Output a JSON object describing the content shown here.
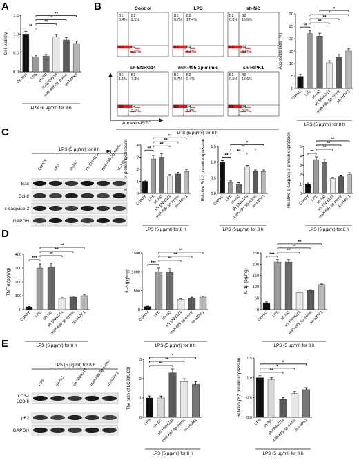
{
  "panels": {
    "A": "A",
    "B": "B",
    "C": "C",
    "D": "D",
    "E": "E"
  },
  "treatment_label": "LPS (5 μg/ml) for 8 h",
  "treatment_label_short": "LPS (5 μg/ml) for 8 h",
  "flow": {
    "axis_y": "PI",
    "axis_x": "Annexin-FITC",
    "plots": [
      {
        "name": "Control",
        "q": [
          "B1\n0.4%",
          "B2\n2.5%",
          "B3",
          "B4\n2.5%"
        ]
      },
      {
        "name": "LPS",
        "q": [
          "B1\n0.7%",
          "B2\n17.4%",
          "B3",
          "B4\n4.6%"
        ]
      },
      {
        "name": "sh-NC",
        "q": [
          "B1\n0.6%",
          "B2\n16.5%",
          "B3",
          "B4\n3.6%"
        ]
      },
      {
        "name": "sh-SNHG14",
        "q": [
          "B1\n1.1%",
          "B2\n7.3%",
          "B3",
          "B4\n2.5%"
        ]
      },
      {
        "name": "miR-495-3p mimic",
        "q": [
          "B1\n0.7%",
          "B2\n9.4%",
          "B3",
          "B4\n3.5%"
        ]
      },
      {
        "name": "sh-HIPK1",
        "q": [
          "B1\n0.5%",
          "B2\n12.6%",
          "B3",
          "B4\n2.9%"
        ]
      }
    ]
  },
  "blots_C": {
    "header": "LPS (5 μg/ml) for 8 h",
    "lanes": [
      "Control",
      "LPS",
      "sh-NC",
      "sh-SNHG14",
      "miR-495-3p mimic",
      "sh-HIPK1"
    ],
    "rows": [
      "Bax",
      "Bcl-2",
      "c-caspase 3",
      "GAPDH"
    ]
  },
  "blots_E": {
    "header": "LPS (5 μg/ml) for 8 h",
    "lanes": [
      "LPS",
      "sh-NC",
      "sh-SNHG14",
      "miR-495-3p mimic",
      "sh-HIPK1"
    ],
    "rows": [
      "LC3-I",
      "LC3-II",
      "p62",
      "GAPDH"
    ]
  },
  "chart_data": [
    {
      "id": "A",
      "type": "bar",
      "ylabel": "Cell viability",
      "ylim": [
        0,
        1.5
      ],
      "yticks": [
        0.0,
        0.5,
        1.0,
        1.5
      ],
      "categories": [
        "Control",
        "LPS",
        "sh-NC",
        "sh-SNHG14",
        "miR-495-3p mimic",
        "sh-HIPK1"
      ],
      "values": [
        1.0,
        0.4,
        0.42,
        0.92,
        0.84,
        0.75
      ],
      "errors": [
        0.07,
        0.04,
        0.04,
        0.07,
        0.07,
        0.06
      ],
      "sig": [
        "**",
        "**",
        "**",
        "**"
      ],
      "xlabel": "LPS (5 μg/ml) for 8 h"
    },
    {
      "id": "B",
      "type": "bar",
      "ylabel": "Apoptosis cells (%)",
      "ylim": [
        0,
        30
      ],
      "yticks": [
        0,
        5,
        10,
        15,
        20,
        25,
        30
      ],
      "categories": [
        "Control",
        "LPS",
        "sh-NC",
        "sh-SNHG14",
        "miR-495-3p mimic",
        "sh-HIPK1"
      ],
      "values": [
        4.8,
        22.0,
        21.0,
        10.3,
        12.7,
        15.0
      ],
      "errors": [
        0.8,
        1.3,
        1.2,
        0.8,
        0.9,
        0.9
      ],
      "sig": [
        "**",
        "**",
        "**",
        "*",
        "*"
      ],
      "xlabel": "LPS (5 μg/ml) for 8 h"
    },
    {
      "id": "C1",
      "type": "bar",
      "ylabel": "Relative Bax protein expression",
      "ylim": [
        0,
        4
      ],
      "yticks": [
        0,
        1,
        2,
        3,
        4
      ],
      "categories": [
        "Control",
        "LPS",
        "sh-NC",
        "sh-SNHG14",
        "miR-495-3p mimic",
        "sh-HIPK1"
      ],
      "values": [
        1.0,
        2.85,
        3.0,
        1.45,
        1.6,
        1.8
      ],
      "errors": [
        0.1,
        0.3,
        0.3,
        0.1,
        0.15,
        0.2
      ],
      "sig": [
        "**",
        "**",
        "**",
        "**"
      ],
      "xlabel": "LPS (5 μg/ml) for 8 h"
    },
    {
      "id": "C2",
      "type": "bar",
      "ylabel": "Relative Bcl-2 protein expression",
      "ylim": [
        0,
        1.5
      ],
      "yticks": [
        0.0,
        0.5,
        1.0,
        1.5
      ],
      "categories": [
        "Control",
        "LPS",
        "sh-NC",
        "sh-SNHG14",
        "miR-495-3p mimic",
        "sh-HIPK1"
      ],
      "values": [
        1.0,
        0.35,
        0.3,
        0.85,
        0.7,
        0.7
      ],
      "errors": [
        0.05,
        0.05,
        0.04,
        0.04,
        0.05,
        0.05
      ],
      "sig": [
        "**",
        "**",
        "**",
        "*"
      ],
      "xlabel": "LPS (5 μg/ml) for 8 h"
    },
    {
      "id": "C3",
      "type": "bar",
      "ylabel": "Relative c-caspase 3 protein expression",
      "ylim": [
        0,
        5
      ],
      "yticks": [
        0,
        1,
        2,
        3,
        4,
        5
      ],
      "categories": [
        "Control",
        "LPS",
        "sh-NC",
        "sh-SNHG14",
        "miR-495-3p mimic",
        "sh-HIPK1"
      ],
      "values": [
        1.0,
        3.6,
        3.3,
        1.6,
        1.8,
        2.0
      ],
      "errors": [
        0.1,
        0.3,
        0.3,
        0.1,
        0.15,
        0.2
      ],
      "sig": [
        "**",
        "**",
        "**",
        "**"
      ],
      "xlabel": "LPS (5 μg/ml) for 8 h"
    },
    {
      "id": "D1",
      "type": "bar",
      "ylabel": "TNF-α (pg/mg)",
      "ylim": [
        0,
        400
      ],
      "yticks": [
        0,
        100,
        200,
        300,
        400
      ],
      "categories": [
        "Control",
        "LPS",
        "sh-NC",
        "sh-SNHG14",
        "miR-495-3p mimic",
        "sh-HIPK1"
      ],
      "values": [
        20,
        300,
        305,
        80,
        90,
        100
      ],
      "errors": [
        3,
        30,
        30,
        5,
        8,
        10
      ],
      "sig": [
        "***",
        "**",
        "**",
        "**"
      ],
      "xlabel": "LPS (5 μg/ml) for 8 h"
    },
    {
      "id": "D2",
      "type": "bar",
      "ylabel": "IL-6 (pg/mg)",
      "ylim": [
        0,
        1500
      ],
      "yticks": [
        0,
        500,
        1000,
        1500
      ],
      "categories": [
        "Control",
        "LPS",
        "sh-NC",
        "sh-SNHG14",
        "miR-495-3p mimic",
        "sh-HIPK1"
      ],
      "values": [
        80,
        1000,
        980,
        270,
        300,
        330
      ],
      "errors": [
        10,
        100,
        100,
        20,
        25,
        30
      ],
      "sig": [
        "***",
        "**",
        "**",
        "**"
      ],
      "xlabel": "LPS (5 μg/ml) for 8 h"
    },
    {
      "id": "D3",
      "type": "bar",
      "ylabel": "IL-1β (pg/mg)",
      "ylim": [
        0,
        250
      ],
      "yticks": [
        0,
        50,
        100,
        150,
        200,
        250
      ],
      "categories": [
        "Control",
        "LPS",
        "sh-NC",
        "sh-SNHG14",
        "miR-495-3p mimic",
        "sh-HIPK1"
      ],
      "values": [
        30,
        210,
        210,
        75,
        85,
        110
      ],
      "errors": [
        4,
        10,
        10,
        3,
        3,
        3
      ],
      "sig": [
        "***",
        "**",
        "**",
        "**"
      ],
      "xlabel": "LPS (5 μg/ml) for 8 h"
    },
    {
      "id": "E1",
      "type": "bar",
      "ylabel": "The ratio of LC3II/LC3I",
      "ylim": [
        0,
        3
      ],
      "yticks": [
        0,
        1,
        2,
        3
      ],
      "categories": [
        "LPS",
        "sh-NC",
        "sh-SNHG14",
        "miR-495-3p mimic",
        "sh-HIPK1"
      ],
      "values": [
        1.0,
        1.0,
        2.3,
        1.85,
        1.7
      ],
      "errors": [
        0.1,
        0.1,
        0.2,
        0.15,
        0.15
      ],
      "sig": [
        "**",
        "**",
        "*"
      ],
      "xlabel": "LPS (5 μg/ml) for 8 h"
    },
    {
      "id": "E2",
      "type": "bar",
      "ylabel": "Relative p62 protein expression",
      "ylim": [
        0,
        1.5
      ],
      "yticks": [
        0.0,
        0.5,
        1.0,
        1.5
      ],
      "categories": [
        "LPS",
        "sh-NC",
        "sh-SNHG14",
        "miR-495-3p mimic",
        "sh-HIPK1"
      ],
      "values": [
        1.0,
        0.95,
        0.45,
        0.6,
        0.7
      ],
      "errors": [
        0.05,
        0.05,
        0.05,
        0.05,
        0.05
      ],
      "sig": [
        "**",
        "*",
        "*"
      ],
      "xlabel": "LPS (5 μg/ml) for 8 h"
    }
  ],
  "colors": {
    "bars6": [
      "#111111",
      "#9a9a9a",
      "#6b6b6b",
      "#e8e8e8",
      "#5a5a5a",
      "#b7b7b7"
    ],
    "bars5": [
      "#111111",
      "#d8d8d8",
      "#5a5a5a",
      "#e8e8e8",
      "#777777"
    ],
    "flow_red": "#e11b1b"
  }
}
